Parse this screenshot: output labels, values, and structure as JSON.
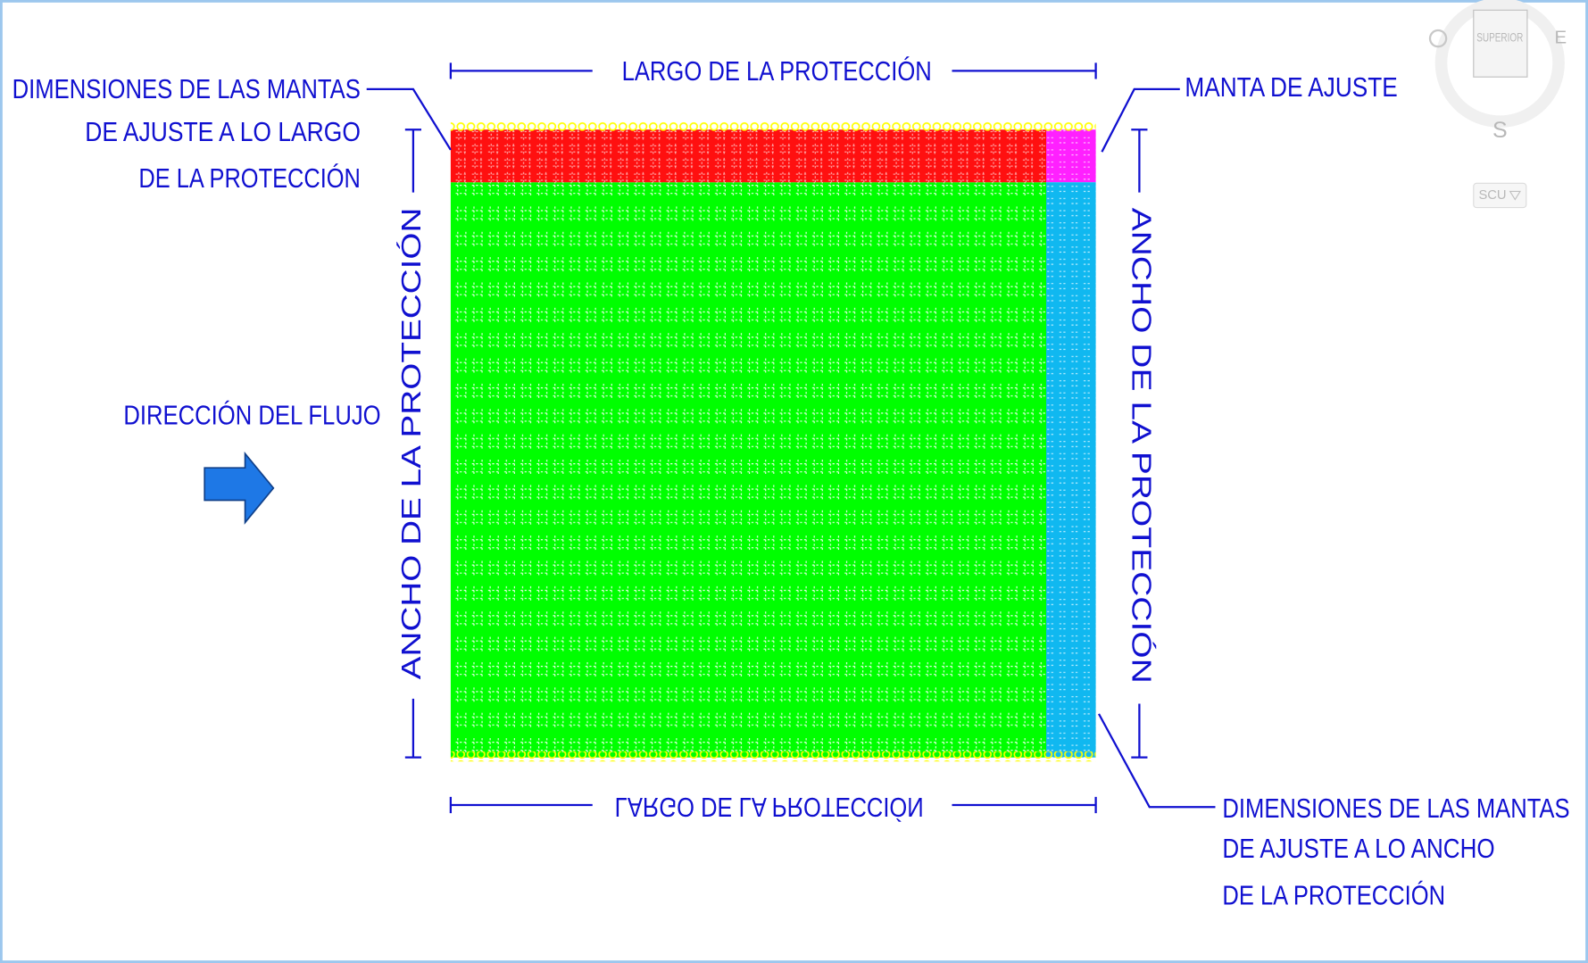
{
  "labels": {
    "top_dimension": "LARGO DE LA PROTECCIÓN",
    "bottom_dimension": "LARGO DE LA PROTECCIÓN",
    "left_dimension": "ANCHO DE LA PROTECCIÓN",
    "right_dimension": "ANCHO DE LA PROTECCIÓN",
    "flow": "DIRECCIÓN DEL FLUJO",
    "adjust_blanket": "MANTA DE AJUSTE",
    "length_note": [
      "DIMENSIONES DE LAS MANTAS",
      "DE AJUSTE  A LO LARGO",
      "DE LA PROTECCIÓN"
    ],
    "width_note": [
      "DIMENSIONES DE LAS MANTAS",
      "DE AJUSTE A LO ANCHO",
      "DE LA PROTECCIÓN"
    ]
  },
  "viewcube": {
    "face": "SUPERIOR",
    "south": "S",
    "east": "E",
    "ucs": "SCU"
  }
}
